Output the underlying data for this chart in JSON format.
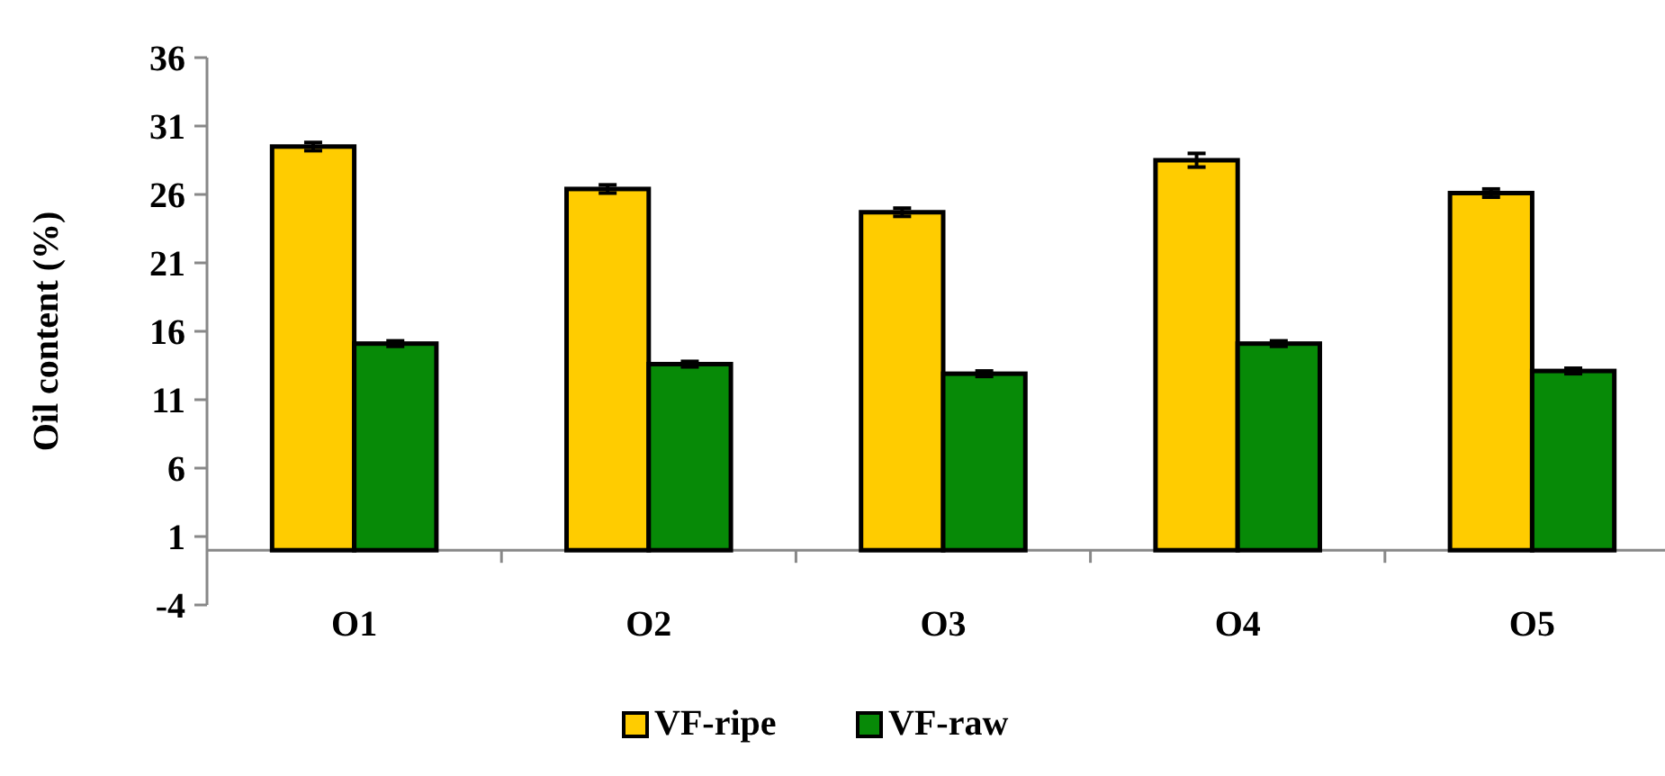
{
  "chart_data": {
    "type": "bar",
    "ylabel": "Oil content (%)",
    "categories": [
      "O1",
      "O2",
      "O3",
      "O4",
      "O5"
    ],
    "series": [
      {
        "name": "VF-ripe",
        "color": "#ffcc00",
        "values": [
          29.5,
          26.4,
          24.7,
          28.5,
          26.1
        ],
        "errors": [
          0.3,
          0.3,
          0.3,
          0.5,
          0.3
        ]
      },
      {
        "name": "VF-raw",
        "color": "#078a07",
        "values": [
          15.1,
          13.6,
          12.9,
          15.1,
          13.1
        ],
        "errors": [
          0.2,
          0.2,
          0.2,
          0.2,
          0.2
        ]
      }
    ],
    "ylim": [
      -4,
      36
    ],
    "yticks": [
      -4,
      1,
      6,
      11,
      16,
      21,
      26,
      31,
      36
    ],
    "legend": "bottom",
    "grid": false
  }
}
